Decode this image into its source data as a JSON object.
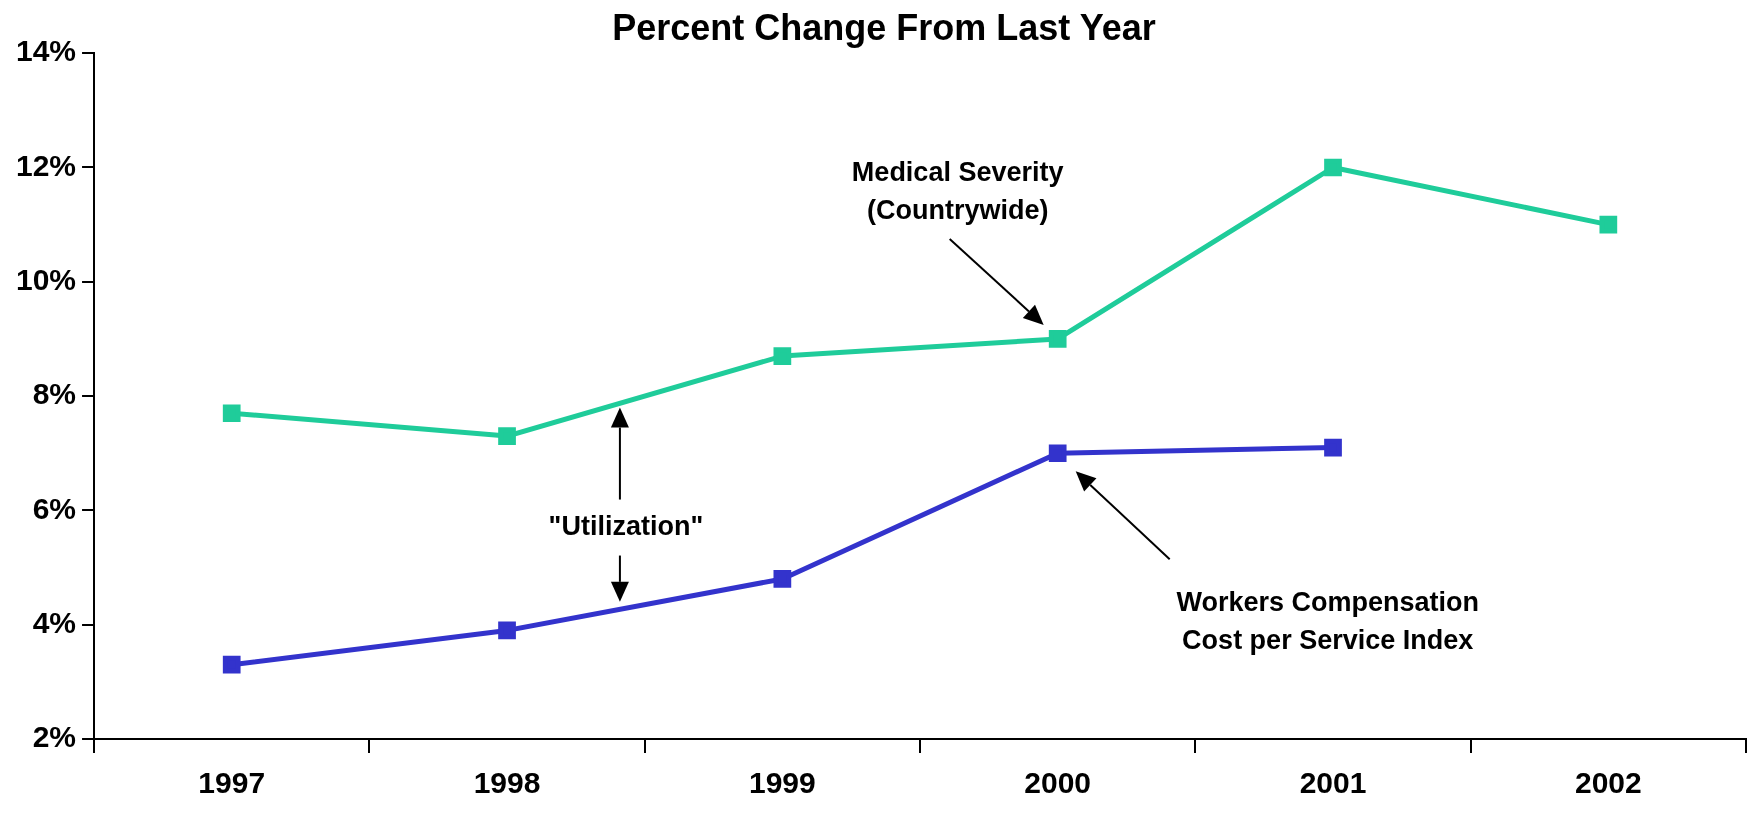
{
  "chart_data": {
    "type": "line",
    "title": "Percent Change From Last Year",
    "categories": [
      "1997",
      "1998",
      "1999",
      "2000",
      "2001",
      "2002"
    ],
    "series": [
      {
        "color": "#1fcc9a",
        "values": [
          7.7,
          7.3,
          8.7,
          9.0,
          12.0,
          11.0
        ]
      },
      {
        "color": "#3333cc",
        "values": [
          3.3,
          3.9,
          4.8,
          7.0,
          7.1,
          null
        ]
      }
    ],
    "ylim": [
      2,
      14
    ],
    "yticks": [
      {
        "value": 2,
        "label": "2%"
      },
      {
        "value": 4,
        "label": "4%"
      },
      {
        "value": 6,
        "label": "6%"
      },
      {
        "value": 8,
        "label": "8%"
      },
      {
        "value": 10,
        "label": "10%"
      },
      {
        "value": 12,
        "label": "12%"
      },
      {
        "value": 14,
        "label": "14%"
      }
    ],
    "annotations": [
      "Medical Severity (Countrywide)",
      "Workers Compensation Cost per Service Index",
      "\"Utilization\""
    ],
    "grid": false,
    "legend": false,
    "marker": "square",
    "line_style": "solid"
  }
}
